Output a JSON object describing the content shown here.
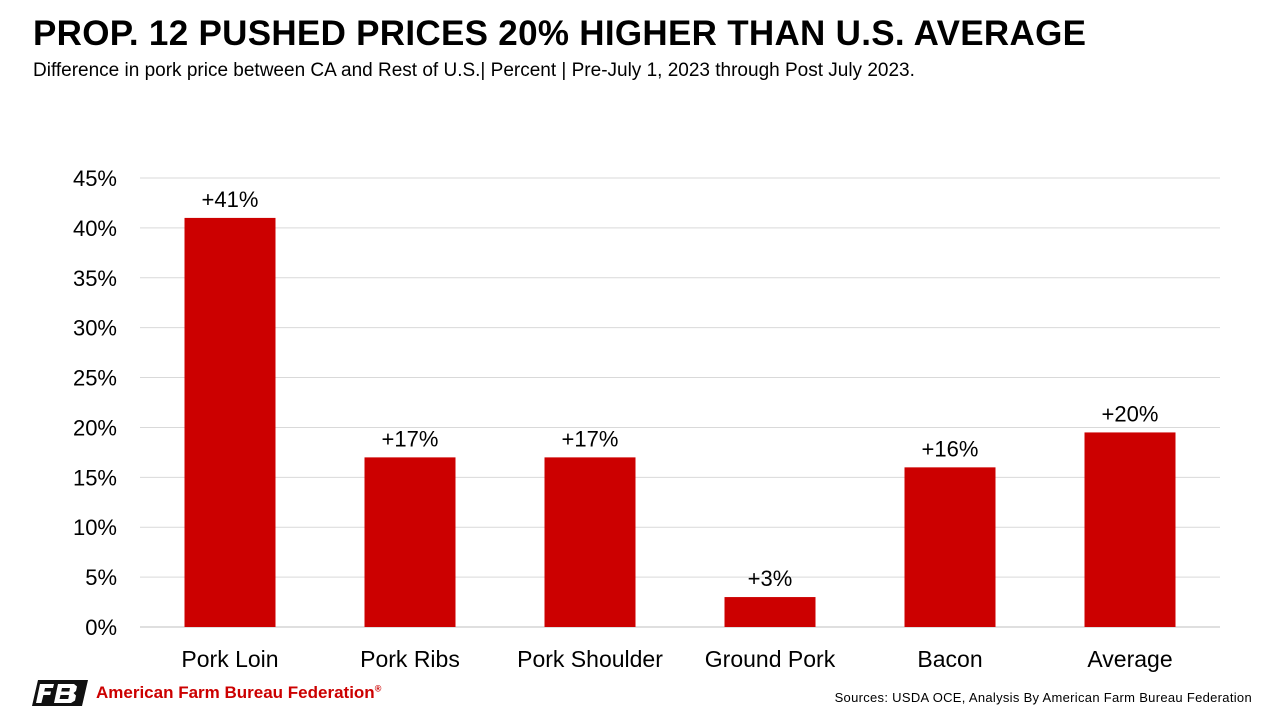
{
  "header": {
    "title": "PROP. 12 PUSHED PRICES 20% HIGHER THAN U.S. AVERAGE",
    "subtitle": "Difference in pork price between CA and Rest of U.S.| Percent | Pre-July 1, 2023 through Post July 2023."
  },
  "footer": {
    "org_name": "American Farm Bureau Federation",
    "registered_mark": "®",
    "logo_text": "FB",
    "sources": "Sources: USDA OCE, Analysis By American Farm Bureau Federation"
  },
  "colors": {
    "bar": "#cc0000",
    "grid": "#d9d9d9",
    "brand": "#cc0000"
  },
  "chart_data": {
    "type": "bar",
    "title": "PROP. 12 PUSHED PRICES 20% HIGHER THAN U.S. AVERAGE",
    "xlabel": "",
    "ylabel": "",
    "categories": [
      "Pork Loin",
      "Pork Ribs",
      "Pork Shoulder",
      "Ground Pork",
      "Bacon",
      "Average"
    ],
    "values": [
      41,
      17,
      17,
      3,
      16,
      19.5
    ],
    "data_labels": [
      "+41%",
      "+17%",
      "+17%",
      "+3%",
      "+16%",
      "+20%"
    ],
    "ylim": [
      0,
      45
    ],
    "yticks": [
      0,
      5,
      10,
      15,
      20,
      25,
      30,
      35,
      40,
      45
    ],
    "ytick_labels": [
      "0%",
      "5%",
      "10%",
      "15%",
      "20%",
      "25%",
      "30%",
      "35%",
      "40%",
      "45%"
    ],
    "grid": true,
    "legend": "none"
  }
}
